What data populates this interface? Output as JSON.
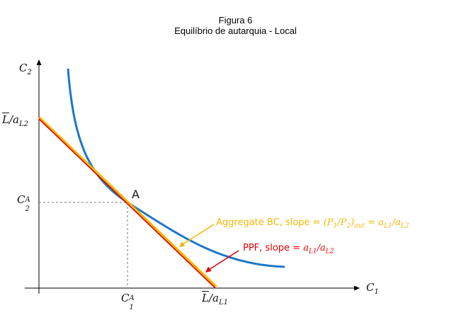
{
  "title": "Figura 6",
  "subtitle": "Equilíbrio de autarquia - Local",
  "axes": {
    "y": {
      "sym": "C",
      "sub": "2"
    },
    "x": {
      "sym": "C",
      "sub": "1"
    }
  },
  "labels": {
    "y_intercept": {
      "num": "L",
      "den": "a",
      "den_sub": "L2"
    },
    "x_intercept": {
      "num": "L",
      "den": "a",
      "den_sub": "L1"
    },
    "c2a": {
      "sym": "C",
      "sub": "2",
      "sup": "A"
    },
    "c1a": {
      "sym": "C",
      "sub": "1",
      "sup": "A"
    },
    "point": "A"
  },
  "annotations": {
    "bc": {
      "bold": "Aggregate BC,",
      "text": " slope = ",
      "math_left": "(P",
      "math_left_sub": "1",
      "math_mid": "/P",
      "math_mid_sub": "2",
      "math_right": ")",
      "math_right_sub": "aut",
      "eq": " = a",
      "eq_sub1": "L1",
      "eq_mid": "/a",
      "eq_sub2": "L2"
    },
    "ppf": {
      "bold": "PPF,",
      "text": " slope = ",
      "math": "a",
      "math_sub1": "L1",
      "math_mid": "/a",
      "math_sub2": "L2"
    }
  },
  "colors": {
    "indifference_curve": "#1f77c4",
    "budget_constraint": "#f2b705",
    "ppf": "#e00000",
    "guide": "#777777"
  }
}
